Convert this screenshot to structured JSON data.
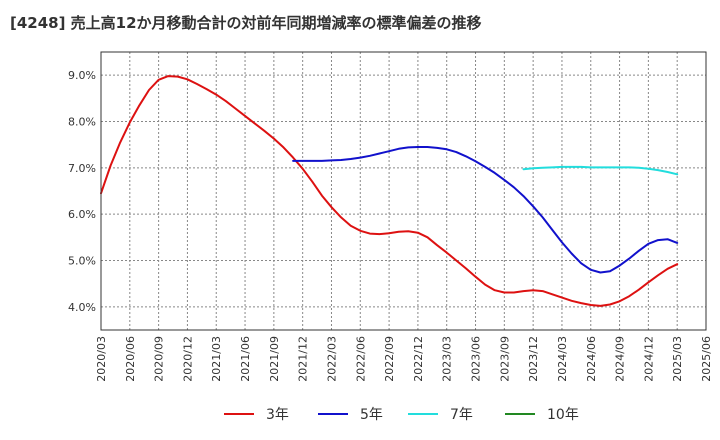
{
  "chart_data": {
    "type": "line",
    "title": "[4248]  売上高12か月移動合計の対前年同期増減率の標準偏差の推移",
    "xlabel": "",
    "ylabel": "",
    "ylim": [
      3.5,
      9.5
    ],
    "x_ticks": [
      "2020/03",
      "2020/06",
      "2020/09",
      "2020/12",
      "2021/03",
      "2021/06",
      "2021/09",
      "2021/12",
      "2022/03",
      "2022/06",
      "2022/09",
      "2022/12",
      "2023/03",
      "2023/06",
      "2023/09",
      "2023/12",
      "2024/03",
      "2024/06",
      "2024/09",
      "2024/12",
      "2025/03",
      "2025/06"
    ],
    "y_ticks": [
      {
        "value": 4,
        "label": "4.0%"
      },
      {
        "value": 5,
        "label": "5.0%"
      },
      {
        "value": 6,
        "label": "6.0%"
      },
      {
        "value": 7,
        "label": "7.0%"
      },
      {
        "value": 8,
        "label": "8.0%"
      },
      {
        "value": 9,
        "label": "9.0%"
      }
    ],
    "grid": true,
    "legend_position": "bottom",
    "series": [
      {
        "name": "3年",
        "color": "#dd1111",
        "x": [
          "2020/03",
          "2020/04",
          "2020/05",
          "2020/06",
          "2020/07",
          "2020/08",
          "2020/09",
          "2020/10",
          "2020/11",
          "2020/12",
          "2021/01",
          "2021/02",
          "2021/03",
          "2021/04",
          "2021/05",
          "2021/06",
          "2021/07",
          "2021/08",
          "2021/09",
          "2021/10",
          "2021/11",
          "2021/12",
          "2022/01",
          "2022/02",
          "2022/03",
          "2022/04",
          "2022/05",
          "2022/06",
          "2022/07",
          "2022/08",
          "2022/09",
          "2022/10",
          "2022/11",
          "2022/12",
          "2023/01",
          "2023/02",
          "2023/03",
          "2023/04",
          "2023/05",
          "2023/06",
          "2023/07",
          "2023/08",
          "2023/09",
          "2023/10",
          "2023/11",
          "2023/12",
          "2024/01",
          "2024/02",
          "2024/03",
          "2024/04",
          "2024/05",
          "2024/06",
          "2024/07",
          "2024/08",
          "2024/09",
          "2024/10",
          "2024/11",
          "2024/12",
          "2025/01",
          "2025/02",
          "2025/03"
        ],
        "values": [
          6.45,
          7.05,
          7.55,
          7.98,
          8.35,
          8.68,
          8.9,
          8.98,
          8.97,
          8.91,
          8.81,
          8.7,
          8.58,
          8.44,
          8.28,
          8.12,
          7.96,
          7.8,
          7.63,
          7.44,
          7.22,
          6.98,
          6.7,
          6.4,
          6.15,
          5.93,
          5.75,
          5.64,
          5.58,
          5.57,
          5.59,
          5.62,
          5.63,
          5.6,
          5.5,
          5.33,
          5.17,
          5.0,
          4.83,
          4.65,
          4.48,
          4.36,
          4.31,
          4.31,
          4.34,
          4.36,
          4.34,
          4.27,
          4.2,
          4.13,
          4.08,
          4.04,
          4.02,
          4.05,
          4.12,
          4.23,
          4.37,
          4.53,
          4.68,
          4.82,
          4.92
        ]
      },
      {
        "name": "5年",
        "color": "#1111cc",
        "x": [
          "2021/11",
          "2021/12",
          "2022/01",
          "2022/02",
          "2022/03",
          "2022/04",
          "2022/05",
          "2022/06",
          "2022/07",
          "2022/08",
          "2022/09",
          "2022/10",
          "2022/11",
          "2022/12",
          "2023/01",
          "2023/02",
          "2023/03",
          "2023/04",
          "2023/05",
          "2023/06",
          "2023/07",
          "2023/08",
          "2023/09",
          "2023/10",
          "2023/11",
          "2023/12",
          "2024/01",
          "2024/02",
          "2024/03",
          "2024/04",
          "2024/05",
          "2024/06",
          "2024/07",
          "2024/08",
          "2024/09",
          "2024/10",
          "2024/11",
          "2024/12",
          "2025/01",
          "2025/02",
          "2025/03"
        ],
        "values": [
          7.15,
          7.15,
          7.15,
          7.15,
          7.16,
          7.17,
          7.19,
          7.22,
          7.26,
          7.31,
          7.36,
          7.41,
          7.44,
          7.45,
          7.45,
          7.43,
          7.4,
          7.34,
          7.25,
          7.14,
          7.02,
          6.89,
          6.74,
          6.58,
          6.39,
          6.17,
          5.93,
          5.66,
          5.39,
          5.15,
          4.94,
          4.8,
          4.74,
          4.77,
          4.89,
          5.04,
          5.21,
          5.36,
          5.44,
          5.46,
          5.38
        ]
      },
      {
        "name": "7年",
        "color": "#22dddd",
        "x": [
          "2023/11",
          "2023/12",
          "2024/01",
          "2024/02",
          "2024/03",
          "2024/04",
          "2024/05",
          "2024/06",
          "2024/07",
          "2024/08",
          "2024/09",
          "2024/10",
          "2024/11",
          "2024/12",
          "2025/01",
          "2025/02",
          "2025/03"
        ],
        "values": [
          6.97,
          6.99,
          7.0,
          7.01,
          7.02,
          7.02,
          7.02,
          7.01,
          7.01,
          7.01,
          7.01,
          7.01,
          7.0,
          6.98,
          6.95,
          6.91,
          6.86
        ]
      },
      {
        "name": "10年",
        "color": "#228822",
        "x": [],
        "values": []
      }
    ]
  }
}
